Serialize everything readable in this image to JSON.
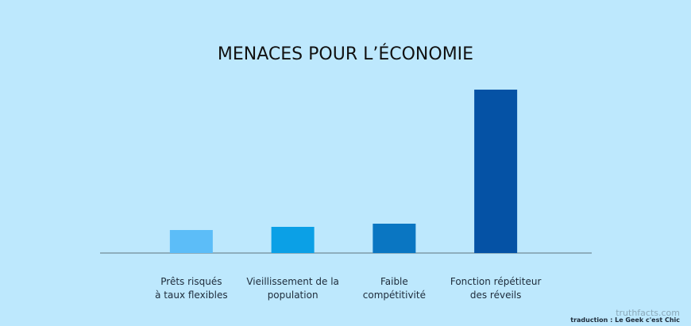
{
  "chart_data": {
    "type": "bar",
    "title": "MENACES POUR L’ÉCONOMIE",
    "categories": [
      "Prêts risqués\nà taux flexibles",
      "Vieillissement de la\npopulation",
      "Faible\ncompétitivité",
      "Fonction répétiteur\ndes réveils"
    ],
    "values": [
      29,
      33,
      37,
      206
    ],
    "colors": [
      "#5cbdf8",
      "#0ba0e6",
      "#0a76c2",
      "#0552a5"
    ],
    "ylim": [
      0,
      206
    ]
  },
  "source": "truthfacts.com",
  "credit": "traduction : Le Geek c'est Chic"
}
